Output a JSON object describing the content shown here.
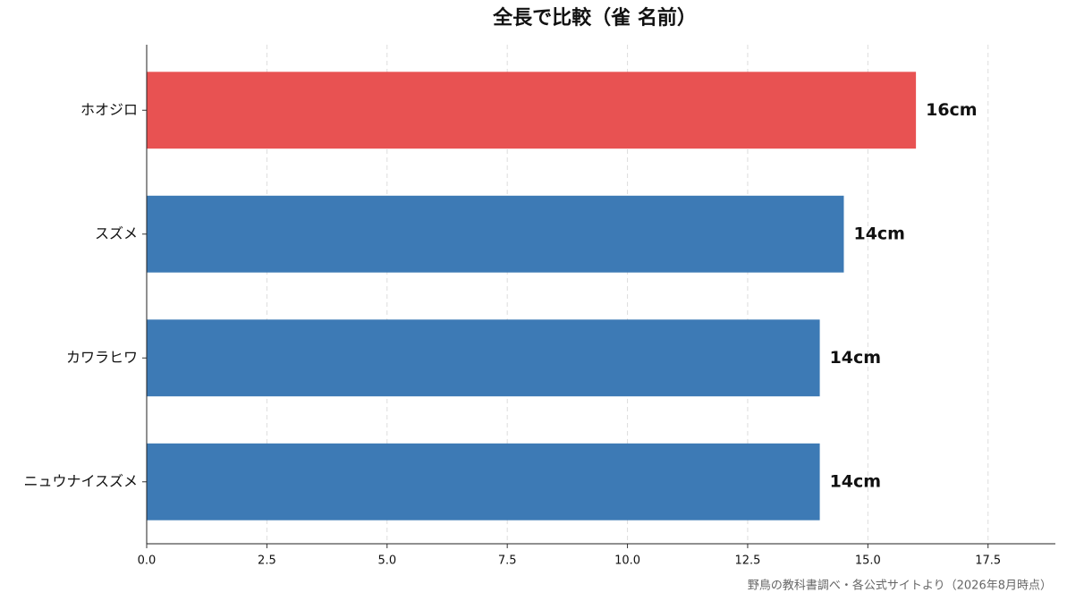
{
  "chart_data": {
    "type": "barh",
    "title": "全長で比較（雀 名前）",
    "categories": [
      "ホオジロ",
      "スズメ",
      "カワラヒワ",
      "ニュウナイスズメ"
    ],
    "values": [
      16,
      14.5,
      14,
      14
    ],
    "value_labels": [
      "16cm",
      "14cm",
      "14cm",
      "14cm"
    ],
    "colors": [
      "#e85252",
      "#3d7ab5",
      "#3d7ab5",
      "#3d7ab5"
    ],
    "xlim": [
      0,
      18.9
    ],
    "xticks": [
      {
        "value": 0,
        "label": "0.0"
      },
      2.5,
      {
        "value": 5,
        "label": "5.0"
      },
      7.5,
      {
        "value": 10,
        "label": "10.0"
      },
      12.5,
      {
        "value": 15,
        "label": "15.0"
      },
      17.5
    ],
    "grid": true,
    "source": "野鳥の教科書調べ・各公式サイトより（2026年8月時点）"
  }
}
